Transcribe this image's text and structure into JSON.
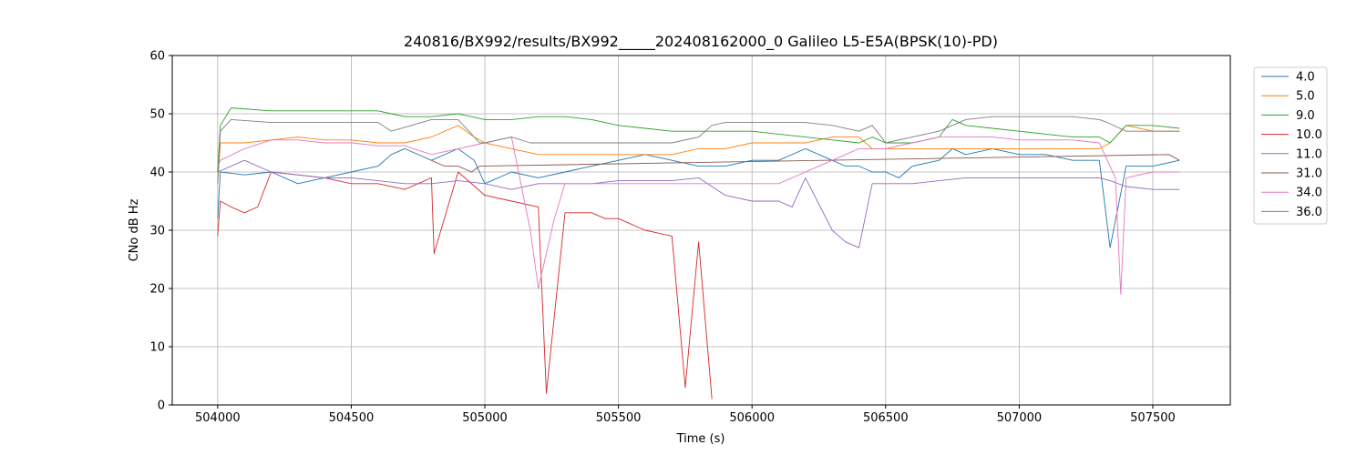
{
  "chart_data": {
    "type": "line",
    "title": "240816/BX992/results/BX992_____202408162000_0 Galileo L5-E5A(BPSK(10)-PD)",
    "xlabel": "Time (s)",
    "ylabel": "CNo dB Hz",
    "xlim": [
      503830,
      507790
    ],
    "ylim": [
      0,
      60
    ],
    "xticks": [
      504000,
      504500,
      505000,
      505500,
      506000,
      506500,
      507000,
      507500
    ],
    "yticks": [
      0,
      10,
      20,
      30,
      40,
      50,
      60
    ],
    "grid": true,
    "legend_position": "outside-top-right",
    "series": [
      {
        "name": "4.0",
        "color": "#1f77b4",
        "x": [
          504000,
          504010,
          504100,
          504200,
          504300,
          504400,
          504500,
          504600,
          504650,
          504700,
          504800,
          504900,
          504960,
          505000,
          505100,
          505200,
          505300,
          505400,
          505500,
          505600,
          505700,
          505800,
          505900,
          506000,
          506100,
          506200,
          506300,
          506350,
          506400,
          506450,
          506500,
          506550,
          506600,
          506700,
          506750,
          506800,
          506900,
          507000,
          507100,
          507200,
          507300,
          507340,
          507400,
          507500,
          507600
        ],
        "y": [
          32,
          40,
          39.5,
          40,
          38,
          39,
          40,
          41,
          43,
          44,
          42,
          44,
          42,
          38,
          40,
          39,
          40,
          41,
          42,
          43,
          42,
          41,
          41,
          42,
          42,
          44,
          42,
          41,
          41,
          40,
          40,
          39,
          41,
          42,
          44,
          43,
          44,
          43,
          43,
          42,
          42,
          27,
          41,
          41,
          42
        ]
      },
      {
        "name": "5.0",
        "color": "#ff7f0e",
        "x": [
          504000,
          504010,
          504100,
          504200,
          504300,
          504400,
          504500,
          504600,
          504700,
          504800,
          504900,
          504960,
          505000,
          505100,
          505200,
          505300,
          505400,
          505500,
          505600,
          505700,
          505800,
          505900,
          506000,
          506100,
          506200,
          506300,
          506400,
          506450,
          506500,
          506600,
          506700,
          506800,
          506900,
          507000,
          507100,
          507200,
          507300,
          507340,
          507400,
          507500,
          507600
        ],
        "y": [
          38,
          45,
          45,
          45.5,
          46,
          45.5,
          45.5,
          45,
          45,
          46,
          48,
          46,
          45,
          44,
          43,
          43,
          43,
          43,
          43,
          43,
          44,
          44,
          45,
          45,
          45,
          46,
          46,
          44,
          44,
          44,
          44,
          44,
          44,
          44,
          44,
          44,
          44,
          45,
          48,
          47,
          47
        ]
      },
      {
        "name": "9.0",
        "color": "#2ca02c",
        "x": [
          504000,
          504010,
          504050,
          504200,
          504400,
          504600,
          504650,
          504700,
          504800,
          504900,
          505000,
          505100,
          505200,
          505300,
          505400,
          505500,
          505600,
          505700,
          505800,
          505900,
          506000,
          506100,
          506200,
          506300,
          506400,
          506450,
          506500,
          506600,
          506700,
          506750,
          506800,
          506900,
          507000,
          507100,
          507200,
          507300,
          507340,
          507400,
          507500,
          507600
        ],
        "y": [
          40,
          48,
          51,
          50.5,
          50.5,
          50.5,
          50,
          49.5,
          49.5,
          50,
          49,
          49,
          49.5,
          49.5,
          49,
          48,
          47.5,
          47,
          47,
          47,
          47,
          46.5,
          46,
          45.5,
          45,
          46,
          45,
          45,
          46,
          49,
          48,
          47.5,
          47,
          46.5,
          46,
          46,
          45,
          48,
          48,
          47.5
        ]
      },
      {
        "name": "10.0",
        "color": "#d62728",
        "x": [
          504000,
          504010,
          504050,
          504100,
          504150,
          504200,
          504300,
          504400,
          504500,
          504600,
          504700,
          504800,
          504810,
          504900,
          505000,
          505100,
          505200,
          505230,
          505300,
          505400,
          505450,
          505500,
          505600,
          505700,
          505750,
          505800,
          505850
        ],
        "y": [
          29,
          35,
          34,
          33,
          34,
          40,
          39.5,
          39,
          38,
          38,
          37,
          39,
          26,
          40,
          36,
          35,
          34,
          2,
          33,
          33,
          32,
          32,
          30,
          29,
          3,
          28,
          1
        ]
      },
      {
        "name": "11.0",
        "color": "#9467bd",
        "x": [
          504000,
          504100,
          504200,
          504300,
          504400,
          504500,
          504600,
          504700,
          504800,
          504900,
          505000,
          505100,
          505200,
          505300,
          505400,
          505500,
          505600,
          505700,
          505800,
          505900,
          506000,
          506100,
          506150,
          506200,
          506300,
          506350,
          506400,
          506450,
          506500,
          506600,
          506700,
          506800,
          506900,
          507000,
          507100,
          507200,
          507300,
          507340,
          507400,
          507500,
          507600
        ],
        "y": [
          40,
          42,
          40,
          39.5,
          39,
          39,
          38.5,
          38,
          38,
          38.5,
          38,
          37,
          38,
          38,
          38,
          38.5,
          38.5,
          38.5,
          39,
          36,
          35,
          35,
          34,
          39,
          30,
          28,
          27,
          38,
          38,
          38,
          38.5,
          39,
          39,
          39,
          39,
          39,
          39,
          38.5,
          37.5,
          37,
          37
        ]
      },
      {
        "name": "31.0",
        "color": "#8c564b",
        "x": [
          504800,
          504850,
          504900,
          504950,
          504980,
          507560,
          507600
        ],
        "y": [
          42,
          41,
          41,
          40,
          41,
          43,
          42
        ]
      },
      {
        "name": "34.0",
        "color": "#e377c2",
        "x": [
          504000,
          504010,
          504100,
          504200,
          504300,
          504400,
          504500,
          504600,
          504700,
          504800,
          504900,
          505000,
          505100,
          505170,
          505200,
          505260,
          505300,
          505400,
          505500,
          505600,
          505700,
          505800,
          505900,
          506000,
          506100,
          506200,
          506300,
          506400,
          506500,
          506600,
          506700,
          506800,
          506900,
          507000,
          507100,
          507200,
          507300,
          507360,
          507380,
          507400,
          507500,
          507600
        ],
        "y": [
          41,
          42,
          44,
          45.5,
          45.5,
          45,
          45,
          44.5,
          44.5,
          43,
          44,
          45,
          46,
          30,
          20,
          32,
          38,
          38,
          38,
          38,
          38,
          38,
          38,
          38,
          38,
          40,
          42,
          44,
          44,
          45,
          46,
          46,
          46,
          45.5,
          45.5,
          45.5,
          45,
          39,
          19,
          39,
          40,
          40
        ]
      },
      {
        "name": "36.0",
        "color": "#7f7f7f",
        "x": [
          504000,
          504010,
          504050,
          504200,
          504400,
          504600,
          504650,
          504800,
          504900,
          504980,
          505000,
          505100,
          505170,
          505300,
          505400,
          505500,
          505600,
          505700,
          505800,
          505850,
          505900,
          506000,
          506100,
          506200,
          506300,
          506400,
          506450,
          506500,
          506600,
          506700,
          506800,
          506900,
          507000,
          507100,
          507200,
          507300,
          507330,
          507400,
          507500,
          507600
        ],
        "y": [
          38,
          47,
          49,
          48.5,
          48.5,
          48.5,
          47,
          49,
          49,
          45,
          45,
          46,
          45,
          45,
          45,
          45,
          45,
          45,
          46,
          48,
          48.5,
          48.5,
          48.5,
          48.5,
          48,
          47,
          48,
          45,
          46,
          47,
          49,
          49.5,
          49.5,
          49.5,
          49.5,
          49,
          48.5,
          47,
          47,
          47
        ]
      }
    ]
  }
}
